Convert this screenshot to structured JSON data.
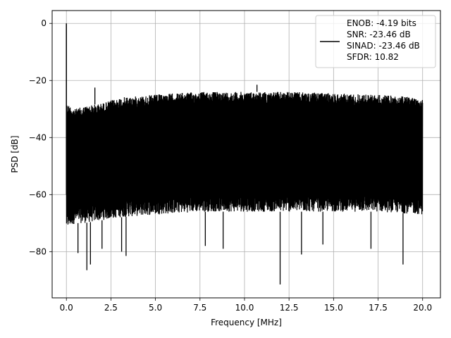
{
  "chart_data": {
    "type": "line",
    "title": "",
    "xlabel": "Frequency [MHz]",
    "ylabel": "PSD [dB]",
    "xlim": [
      -0.8,
      21.0
    ],
    "ylim": [
      -96.2,
      4.5
    ],
    "x_ticks": [
      0.0,
      2.5,
      5.0,
      7.5,
      10.0,
      12.5,
      15.0,
      17.5,
      20.0
    ],
    "x_tick_labels": [
      "0.0",
      "2.5",
      "5.0",
      "7.5",
      "10.0",
      "12.5",
      "15.0",
      "17.5",
      "20.0"
    ],
    "y_ticks": [
      0,
      -20,
      -40,
      -60,
      -80
    ],
    "y_tick_labels": [
      "0",
      "−20",
      "−40",
      "−60",
      "−80"
    ],
    "grid": true,
    "legend_position": "top-right",
    "series": [
      {
        "name": "ENOB: -4.19 bits\nSNR: -23.46 dB\nSINAD: -23.46 dB\nSFDR: 10.82",
        "color": "#000000",
        "style": "noise-floor",
        "freq_range_mhz": [
          0.0,
          20.0
        ],
        "peak": {
          "x": 0.0,
          "y": 0
        },
        "upper_envelope": {
          "x": [
            0.0,
            0.5,
            1.0,
            2.0,
            3.0,
            4.0,
            5.0,
            6.0,
            7.5,
            10.0,
            12.5,
            15.0,
            17.5,
            20.0
          ],
          "y": [
            -28,
            -30,
            -29,
            -28,
            -26,
            -25.5,
            -25,
            -24.5,
            -24,
            -24,
            -24,
            -24.5,
            -25,
            -26
          ]
        },
        "lower_envelope": {
          "x": [
            0.0,
            0.5,
            1.0,
            2.0,
            3.0,
            5.0,
            7.5,
            10.0,
            12.5,
            15.0,
            17.5,
            20.0
          ],
          "y": [
            -72,
            -70,
            -70,
            -69,
            -68,
            -67,
            -66,
            -66,
            -66,
            -66,
            -66,
            -67
          ]
        },
        "spikes": [
          {
            "x": 1.6,
            "y": -22.5
          },
          {
            "x": 0.65,
            "y": -80.5
          },
          {
            "x": 1.15,
            "y": -86.5
          },
          {
            "x": 1.35,
            "y": -84.5
          },
          {
            "x": 2.0,
            "y": -79
          },
          {
            "x": 3.1,
            "y": -80
          },
          {
            "x": 3.35,
            "y": -81.5
          },
          {
            "x": 7.8,
            "y": -78
          },
          {
            "x": 8.8,
            "y": -79
          },
          {
            "x": 12.0,
            "y": -91.5
          },
          {
            "x": 13.2,
            "y": -81
          },
          {
            "x": 14.4,
            "y": -77.5
          },
          {
            "x": 17.1,
            "y": -79
          },
          {
            "x": 18.9,
            "y": -84.5
          },
          {
            "x": 10.7,
            "y": -21.5
          }
        ]
      }
    ]
  }
}
